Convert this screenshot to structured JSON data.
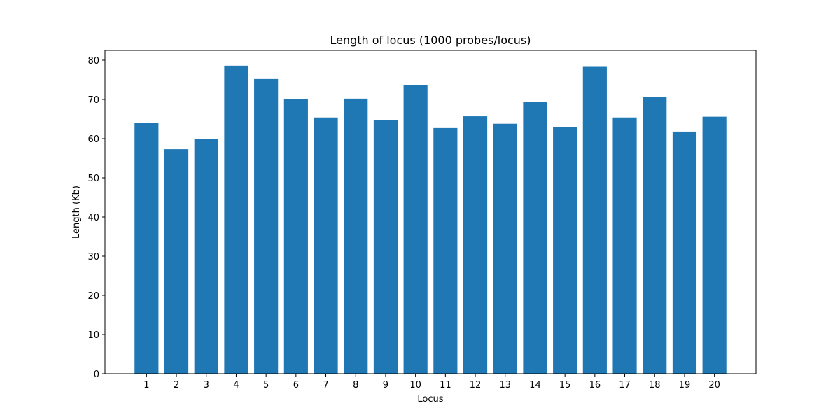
{
  "chart_data": {
    "type": "bar",
    "title": "Length of locus (1000 probes/locus)",
    "xlabel": "Locus",
    "ylabel": "Length (Kb)",
    "categories": [
      "1",
      "2",
      "3",
      "4",
      "5",
      "6",
      "7",
      "8",
      "9",
      "10",
      "11",
      "12",
      "13",
      "14",
      "15",
      "16",
      "17",
      "18",
      "19",
      "20"
    ],
    "values": [
      64.1,
      57.3,
      59.9,
      78.6,
      75.2,
      70.0,
      65.4,
      70.2,
      64.7,
      73.6,
      62.7,
      65.7,
      63.8,
      69.3,
      62.9,
      78.3,
      65.4,
      70.6,
      61.8,
      65.6
    ],
    "ylim": [
      0,
      82.5
    ],
    "yticks": [
      0,
      10,
      20,
      30,
      40,
      50,
      60,
      70,
      80
    ],
    "grid": false,
    "bar_color": "#1f77b4"
  }
}
